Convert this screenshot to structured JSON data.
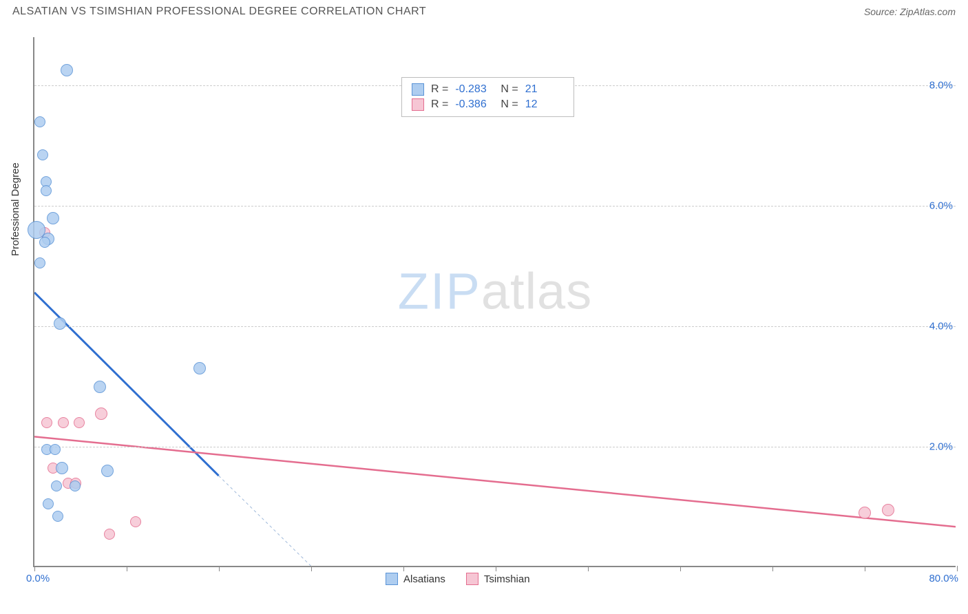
{
  "header": {
    "title": "ALSATIAN VS TSIMSHIAN PROFESSIONAL DEGREE CORRELATION CHART",
    "source": "Source: ZipAtlas.com"
  },
  "watermark": {
    "zip": "ZIP",
    "atlas": "atlas"
  },
  "chart": {
    "type": "scatter",
    "y_axis_title": "Professional Degree",
    "xlim": [
      0.0,
      80.0
    ],
    "ylim": [
      0.0,
      8.8
    ],
    "x_min_label": "0.0%",
    "x_max_label": "80.0%",
    "y_ticks": [
      2.0,
      4.0,
      6.0,
      8.0
    ],
    "y_tick_labels": [
      "2.0%",
      "4.0%",
      "6.0%",
      "8.0%"
    ],
    "x_tick_positions": [
      0.0,
      8.0,
      16.0,
      24.0,
      32.0,
      40.0,
      48.0,
      56.0,
      64.0,
      72.0,
      80.0
    ],
    "grid_color": "#cccccc",
    "axis_color": "#888888",
    "tick_label_color": "#2f6fd0"
  },
  "series": {
    "alsatians": {
      "label": "Alsatians",
      "fill": "#aecdf0",
      "stroke": "#5a93d6",
      "line_color": "#2f6fd0",
      "R": "-0.283",
      "N": "21",
      "trend": {
        "x1": 0.0,
        "y1": 4.55,
        "x2": 16.0,
        "y2": 1.5
      },
      "trend_extrap": {
        "x1": 16.0,
        "y1": 1.5,
        "x2": 24.0,
        "y2": 0.0
      },
      "points": [
        {
          "x": 2.8,
          "y": 8.25,
          "r": 9
        },
        {
          "x": 0.5,
          "y": 7.4,
          "r": 8
        },
        {
          "x": 0.7,
          "y": 6.85,
          "r": 8
        },
        {
          "x": 1.0,
          "y": 6.4,
          "r": 8
        },
        {
          "x": 1.0,
          "y": 6.25,
          "r": 8
        },
        {
          "x": 1.6,
          "y": 5.8,
          "r": 9
        },
        {
          "x": 0.2,
          "y": 5.6,
          "r": 13
        },
        {
          "x": 1.2,
          "y": 5.45,
          "r": 9
        },
        {
          "x": 0.9,
          "y": 5.4,
          "r": 8
        },
        {
          "x": 0.5,
          "y": 5.05,
          "r": 8
        },
        {
          "x": 2.2,
          "y": 4.05,
          "r": 9
        },
        {
          "x": 14.3,
          "y": 3.3,
          "r": 9
        },
        {
          "x": 5.7,
          "y": 3.0,
          "r": 9
        },
        {
          "x": 1.1,
          "y": 1.95,
          "r": 8
        },
        {
          "x": 1.8,
          "y": 1.95,
          "r": 8
        },
        {
          "x": 2.4,
          "y": 1.65,
          "r": 9
        },
        {
          "x": 6.3,
          "y": 1.6,
          "r": 9
        },
        {
          "x": 1.9,
          "y": 1.35,
          "r": 8
        },
        {
          "x": 3.5,
          "y": 1.35,
          "r": 8
        },
        {
          "x": 1.2,
          "y": 1.05,
          "r": 8
        },
        {
          "x": 2.0,
          "y": 0.85,
          "r": 8
        }
      ]
    },
    "tsimshian": {
      "label": "Tsimshian",
      "fill": "#f6c6d4",
      "stroke": "#e46d8f",
      "line_color": "#e46d8f",
      "R": "-0.386",
      "N": "12",
      "trend": {
        "x1": 0.0,
        "y1": 2.15,
        "x2": 80.0,
        "y2": 0.65
      },
      "points": [
        {
          "x": 0.9,
          "y": 5.55,
          "r": 8
        },
        {
          "x": 5.8,
          "y": 2.55,
          "r": 9
        },
        {
          "x": 1.1,
          "y": 2.4,
          "r": 8
        },
        {
          "x": 2.5,
          "y": 2.4,
          "r": 8
        },
        {
          "x": 3.9,
          "y": 2.4,
          "r": 8
        },
        {
          "x": 1.6,
          "y": 1.65,
          "r": 8
        },
        {
          "x": 2.9,
          "y": 1.4,
          "r": 8
        },
        {
          "x": 3.6,
          "y": 1.4,
          "r": 8
        },
        {
          "x": 8.8,
          "y": 0.75,
          "r": 8
        },
        {
          "x": 6.5,
          "y": 0.55,
          "r": 8
        },
        {
          "x": 72.0,
          "y": 0.9,
          "r": 9
        },
        {
          "x": 74.0,
          "y": 0.95,
          "r": 9
        }
      ]
    }
  },
  "legend_stats_labels": {
    "R": "R =",
    "N": "N ="
  }
}
